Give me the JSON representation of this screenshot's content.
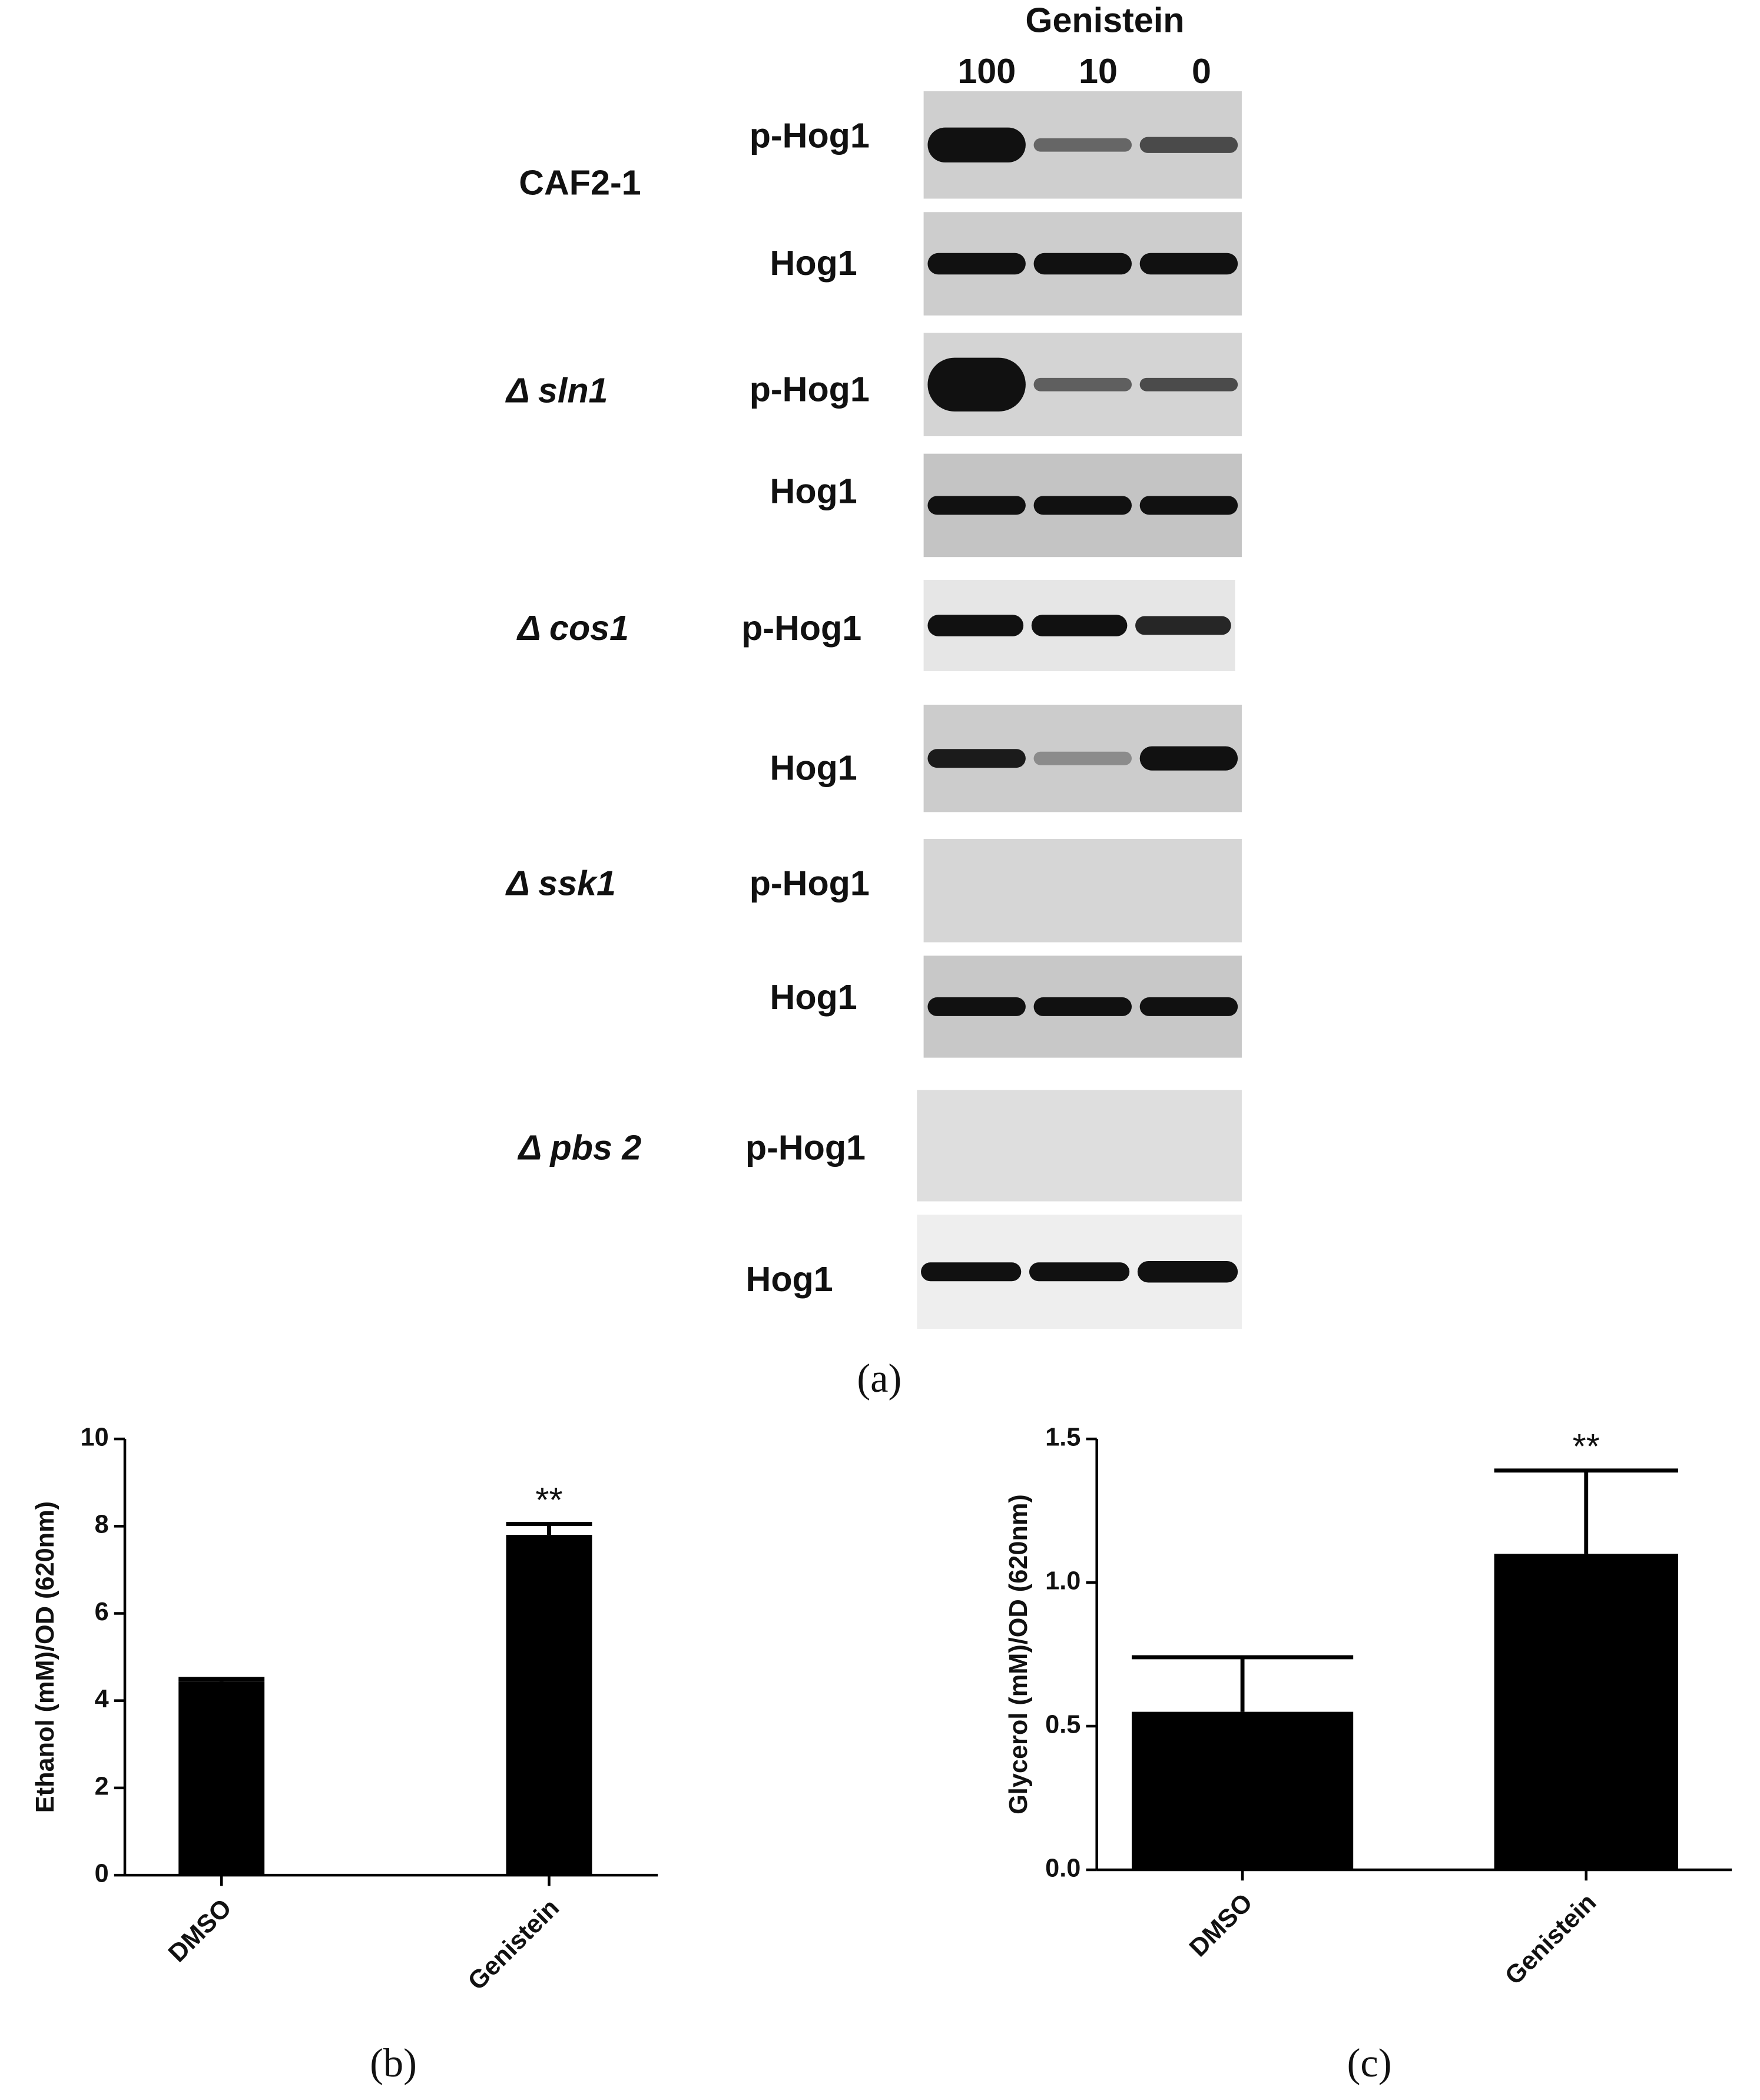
{
  "blot": {
    "panel_label": "(a)",
    "title": "Genistein",
    "lanes": [
      "100",
      "10",
      "0"
    ],
    "strains": [
      {
        "name": "CAF2-1",
        "rows": [
          "p-Hog1",
          "Hog1"
        ]
      },
      {
        "name": "Δ sln1",
        "rows": [
          "p-Hog1",
          "Hog1"
        ]
      },
      {
        "name": "Δ cos1",
        "rows": [
          "p-Hog1",
          "Hog1"
        ]
      },
      {
        "name": "Δ ssk1",
        "rows": [
          "p-Hog1",
          "Hog1"
        ]
      },
      {
        "name": "Δ pbs 2",
        "rows": [
          "p-Hog1",
          "Hog1"
        ]
      }
    ]
  },
  "chart_data": [
    {
      "type": "bar",
      "panel_label": "(b)",
      "y_label": "Ethanol (mM)/OD (620nm)",
      "categories": [
        "DMSO",
        "Genistein"
      ],
      "values": [
        4.45,
        7.8
      ],
      "errors": [
        0.05,
        0.25
      ],
      "color": "#000000",
      "ylim": [
        0,
        10
      ],
      "yticks": [
        0,
        2,
        4,
        6,
        8,
        10
      ],
      "annotations": [
        {
          "text": "**",
          "x": "Genistein"
        }
      ]
    },
    {
      "type": "bar",
      "panel_label": "(c)",
      "y_label": "Glycerol (mM)/OD (620nm)",
      "categories": [
        "DMSO",
        "Genistein"
      ],
      "values": [
        0.55,
        1.1
      ],
      "errors": [
        0.19,
        0.29
      ],
      "color": "#000000",
      "ylim": [
        0,
        1.5
      ],
      "yticks": [
        {
          "value": 0,
          "label": "0.0"
        },
        0.5,
        {
          "value": 1,
          "label": "1.0"
        },
        {
          "value": 1.5,
          "label": "1.5"
        }
      ],
      "annotations": [
        {
          "text": "**",
          "x": "Genistein"
        }
      ]
    }
  ]
}
